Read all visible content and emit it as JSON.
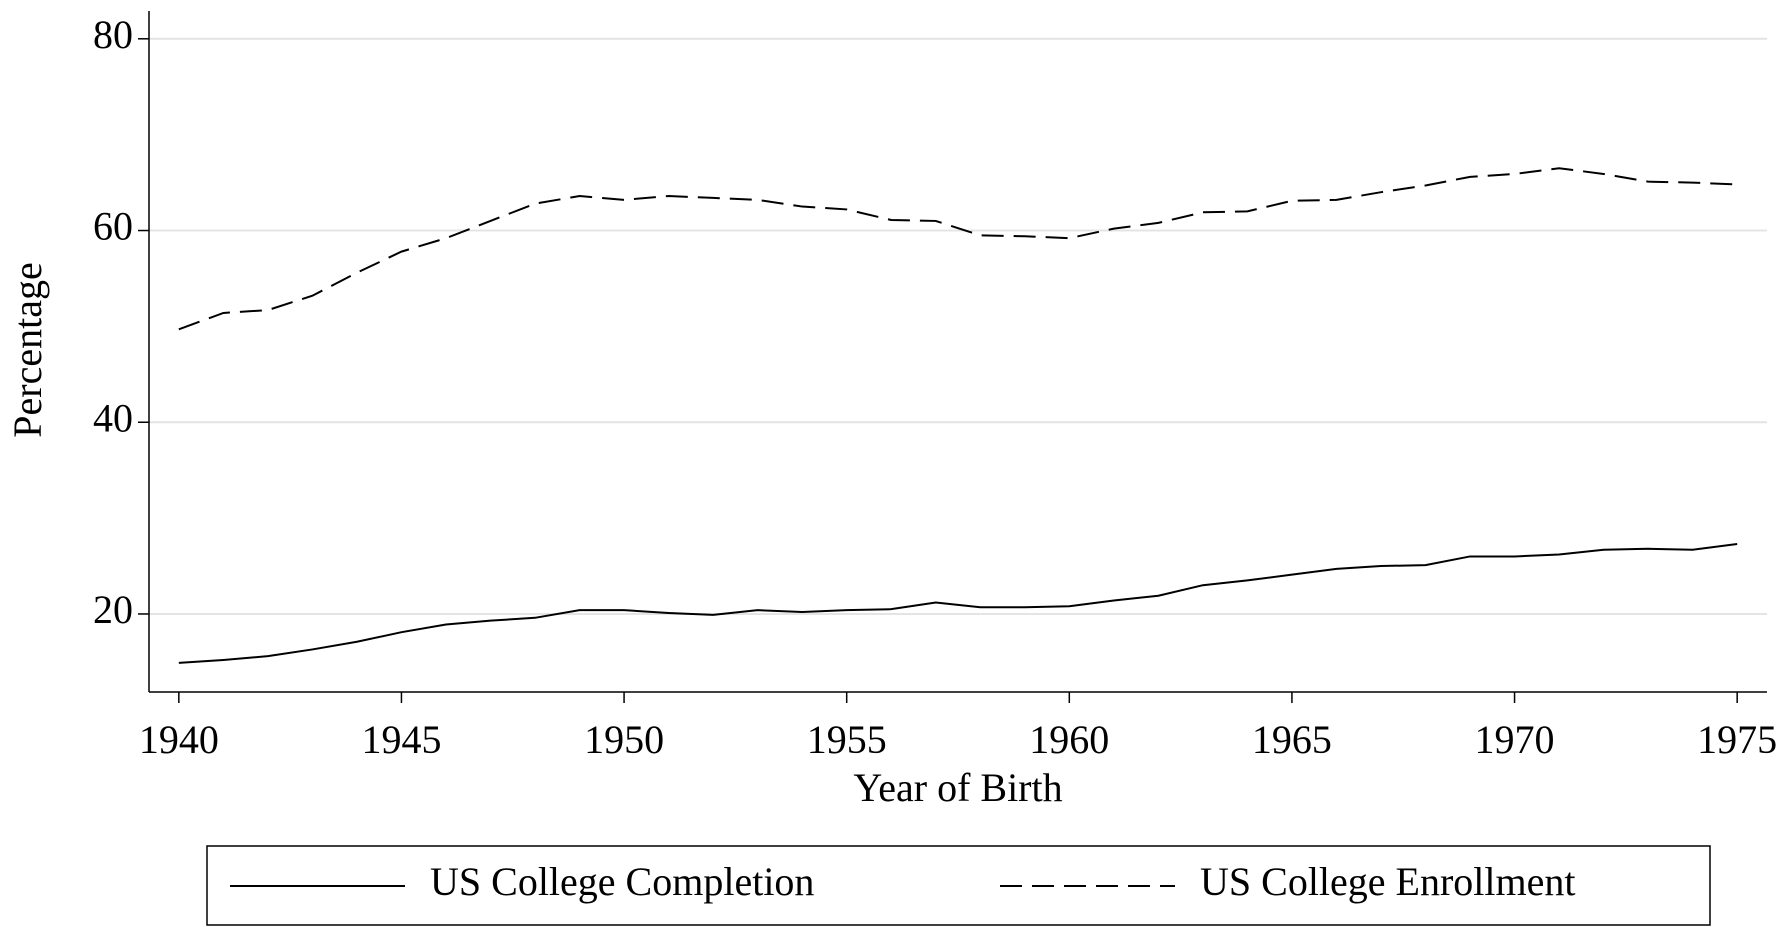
{
  "chart_data": {
    "type": "line",
    "x_label": "Year of Birth",
    "y_label": "Percentage",
    "x": [
      1940,
      1941,
      1942,
      1943,
      1944,
      1945,
      1946,
      1947,
      1948,
      1949,
      1950,
      1951,
      1952,
      1953,
      1954,
      1955,
      1956,
      1957,
      1958,
      1959,
      1960,
      1961,
      1962,
      1963,
      1964,
      1965,
      1966,
      1967,
      1968,
      1969,
      1970,
      1971,
      1972,
      1973,
      1974,
      1975
    ],
    "series": [
      {
        "name": "US College Completion",
        "color": "#000000",
        "dash": "solid",
        "values": [
          14.9,
          15.2,
          15.6,
          16.3,
          17.1,
          18.1,
          18.9,
          19.3,
          19.6,
          20.4,
          20.4,
          20.1,
          19.9,
          20.4,
          20.2,
          20.4,
          20.5,
          21.2,
          20.7,
          20.7,
          20.8,
          21.4,
          21.9,
          23.0,
          23.5,
          24.1,
          24.7,
          25.0,
          25.1,
          26.0,
          26.0,
          26.2,
          26.7,
          26.8,
          26.7,
          27.3
        ]
      },
      {
        "name": "US College Enrollment",
        "color": "#000000",
        "dash": "dashed",
        "values": [
          49.7,
          51.4,
          51.7,
          53.2,
          55.6,
          57.8,
          59.2,
          61.0,
          62.8,
          63.6,
          63.2,
          63.6,
          63.4,
          63.2,
          62.5,
          62.2,
          61.1,
          61.0,
          59.5,
          59.4,
          59.2,
          60.2,
          60.8,
          61.9,
          62.0,
          63.1,
          63.2,
          64.0,
          64.7,
          65.6,
          65.9,
          66.5,
          65.9,
          65.1,
          65.0,
          64.8
        ]
      }
    ],
    "xlim": [
      1939.33,
      1975.67
    ],
    "xticks": [
      1940,
      1945,
      1950,
      1955,
      1960,
      1965,
      1970,
      1975
    ],
    "ylim": [
      11.86,
      82.9
    ],
    "yticks": [
      20,
      40,
      60,
      80
    ],
    "grid": true,
    "legend": "bottom"
  }
}
